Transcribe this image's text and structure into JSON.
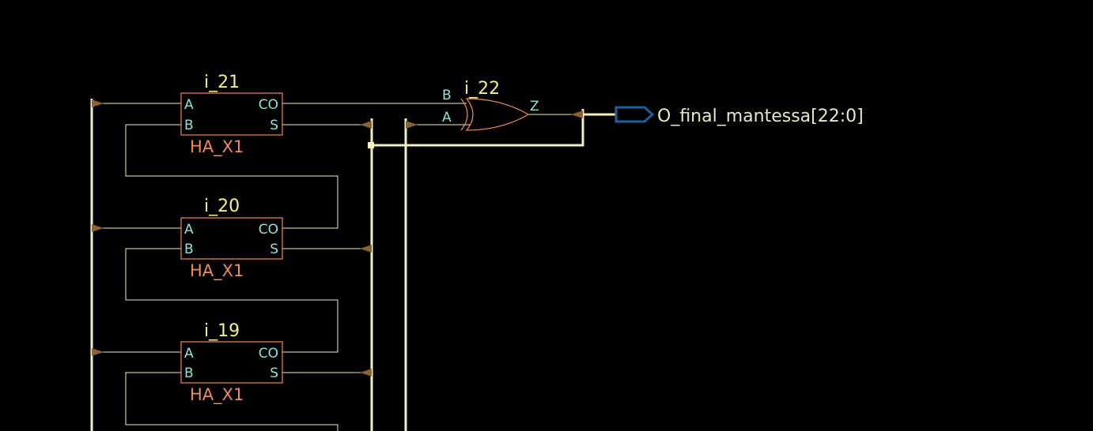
{
  "colors": {
    "background": "#000000",
    "wire": "#f1f1c2",
    "cell_outline": "#f08a5a",
    "instance_label": "#f4f08a",
    "pin_label": "#8fe3d6",
    "port_outline": "#1f5fa0",
    "port_label": "#e8e8c8",
    "pin_arrow": "#8a6238"
  },
  "cells": [
    {
      "instance": "i_21",
      "cell_type": "HA_X1",
      "pin_a": "A",
      "pin_b": "B",
      "pin_co": "CO",
      "pin_s": "S"
    },
    {
      "instance": "i_20",
      "cell_type": "HA_X1",
      "pin_a": "A",
      "pin_b": "B",
      "pin_co": "CO",
      "pin_s": "S"
    },
    {
      "instance": "i_19",
      "cell_type": "HA_X1",
      "pin_a": "A",
      "pin_b": "B",
      "pin_co": "CO",
      "pin_s": "S"
    }
  ],
  "xor_gate": {
    "instance": "i_22",
    "pin_a": "A",
    "pin_b": "B",
    "pin_z": "Z"
  },
  "output_port": {
    "name": "O_final_mantessa[22:0]",
    "icon": "output-port-icon"
  }
}
